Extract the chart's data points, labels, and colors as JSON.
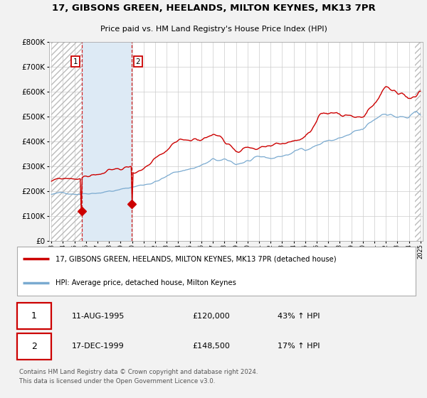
{
  "title": "17, GIBSONS GREEN, HEELANDS, MILTON KEYNES, MK13 7PR",
  "subtitle": "Price paid vs. HM Land Registry's House Price Index (HPI)",
  "background_color": "#f2f2f2",
  "plot_bg_color": "#ffffff",
  "legend_label_red": "17, GIBSONS GREEN, HEELANDS, MILTON KEYNES, MK13 7PR (detached house)",
  "legend_label_blue": "HPI: Average price, detached house, Milton Keynes",
  "transaction1_date": "11-AUG-1995",
  "transaction1_price": "£120,000",
  "transaction1_hpi": "43% ↑ HPI",
  "transaction1_year": 1995.62,
  "transaction1_value": 120000,
  "transaction2_date": "17-DEC-1999",
  "transaction2_price": "£148,500",
  "transaction2_hpi": "17% ↑ HPI",
  "transaction2_year": 1999.96,
  "transaction2_value": 148500,
  "footer": "Contains HM Land Registry data © Crown copyright and database right 2024.\nThis data is licensed under the Open Government Licence v3.0.",
  "red_color": "#cc0000",
  "blue_color": "#7aaad0",
  "hatch_region_end": 1995.62,
  "blue_region_start": 1995.62,
  "blue_region_end": 1999.96,
  "ylim": [
    0,
    800000
  ],
  "yticks": [
    0,
    100000,
    200000,
    300000,
    400000,
    500000,
    600000,
    700000,
    800000
  ],
  "xmin": 1993,
  "xmax": 2025
}
